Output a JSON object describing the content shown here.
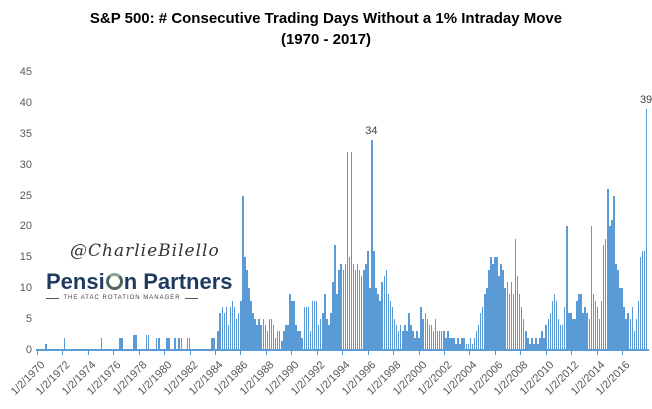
{
  "title": {
    "line1": "S&P 500: # Consecutive Trading Days Without a 1% Intraday Move",
    "line2": "(1970 - 2017)"
  },
  "watermark": "@CharlieBilello",
  "logo": {
    "name_left": "Pensi",
    "name_right": "n Partners",
    "o_icon": "rotation-ring-icon",
    "tagline": "THE ATAC ROTATION MANAGER",
    "brand_color": "#1F3A5F"
  },
  "chart_data": {
    "type": "bar",
    "title": "S&P 500: # Consecutive Trading Days Without a 1% Intraday Move (1970 - 2017)",
    "xlabel": "",
    "ylabel": "",
    "ylim": [
      0,
      45
    ],
    "yticks": [
      0,
      5,
      10,
      15,
      20,
      25,
      30,
      35,
      40,
      45
    ],
    "grid": false,
    "legend": false,
    "bar_color": "#5B9BD5",
    "axis_text_color": "#595959",
    "xtick_labels": [
      "1/2/1970",
      "1/2/1972",
      "1/2/1974",
      "1/2/1976",
      "1/2/1978",
      "1/2/1980",
      "1/2/1982",
      "1/2/1984",
      "1/2/1986",
      "1/2/1988",
      "1/2/1990",
      "1/2/1992",
      "1/2/1994",
      "1/2/1996",
      "1/2/1998",
      "1/2/2000",
      "1/2/2002",
      "1/2/2004",
      "1/2/2006",
      "1/2/2008",
      "1/2/2010",
      "1/2/2012",
      "1/2/2014",
      "1/2/2016"
    ],
    "values": [
      0,
      0,
      0,
      0,
      1,
      0,
      0,
      0,
      0,
      0,
      0,
      0,
      0,
      2,
      0,
      0,
      0,
      0,
      0,
      0,
      0,
      0,
      0,
      0,
      0,
      0,
      0,
      0,
      0,
      0,
      0,
      2,
      0,
      0,
      0,
      0,
      0,
      0,
      0,
      0,
      2,
      2,
      0,
      0,
      0,
      0,
      0,
      2.5,
      2.5,
      0,
      0,
      0,
      0,
      2.5,
      2.5,
      0,
      0,
      0,
      2,
      2,
      0,
      0,
      0,
      2,
      2,
      0,
      0,
      2,
      0,
      2,
      2,
      0,
      0,
      2,
      2,
      0,
      0,
      0,
      0,
      0,
      0,
      0,
      0,
      0,
      0,
      2,
      2,
      0,
      3,
      6,
      7,
      6,
      7,
      4,
      7,
      8,
      7,
      5,
      6,
      8,
      25,
      15,
      13,
      10,
      8,
      6,
      5,
      4,
      5,
      4,
      5,
      4,
      3,
      5,
      5,
      4,
      2,
      3,
      3,
      1.5,
      3,
      4,
      4,
      9,
      8,
      8,
      4,
      3,
      3,
      2,
      7,
      7,
      7,
      3,
      8,
      8,
      8,
      4,
      5,
      6,
      9,
      5,
      4,
      6,
      11,
      17,
      9,
      13,
      14,
      13,
      14,
      32,
      15,
      32,
      14,
      13,
      14,
      13,
      12,
      13,
      14,
      16,
      10,
      34,
      16,
      10,
      9,
      8,
      11,
      12,
      13,
      9,
      8,
      7,
      5,
      4,
      3,
      4,
      3,
      4,
      3,
      6,
      4,
      3,
      2,
      3,
      2,
      7,
      5,
      6,
      5,
      4,
      4,
      3,
      5,
      3,
      3,
      3,
      3,
      2,
      3,
      2,
      2,
      2,
      1,
      2,
      1,
      2,
      2,
      1,
      1,
      2,
      1,
      2,
      3,
      4,
      6,
      7,
      9,
      10,
      13,
      15,
      14,
      15,
      15,
      12,
      14,
      13,
      10,
      11,
      9,
      11,
      9,
      18,
      12,
      9,
      7,
      5,
      3,
      2,
      1,
      2,
      1,
      2,
      1,
      2,
      3,
      2,
      4,
      5,
      6,
      8,
      9,
      8,
      5,
      4,
      4,
      7,
      20,
      6,
      6,
      5,
      5,
      8,
      9,
      9,
      6,
      7,
      6,
      5,
      20,
      9,
      8,
      7,
      5,
      8,
      17,
      18,
      26,
      20,
      21,
      25,
      14,
      13,
      10,
      10,
      7,
      5,
      6,
      5,
      7,
      3,
      5,
      8,
      15,
      16,
      16,
      39
    ],
    "annotations": [
      {
        "bar_index": 163,
        "label": "34"
      },
      {
        "bar_index": 297,
        "label": "39"
      }
    ]
  }
}
